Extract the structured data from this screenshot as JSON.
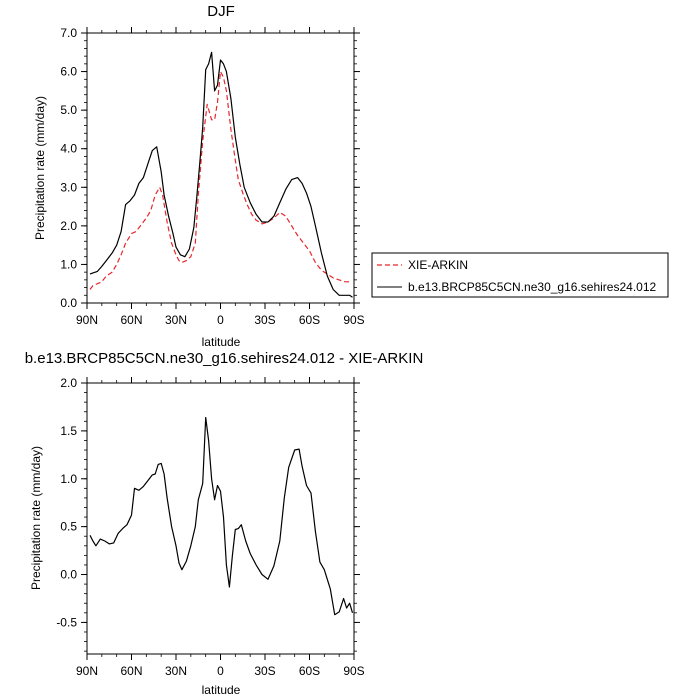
{
  "chart_data": [
    {
      "type": "line",
      "title": "DJF",
      "xlabel": "latitude",
      "ylabel": "Precipitation rate (mm/day)",
      "xlim": [
        90,
        -90
      ],
      "ylim": [
        0,
        7
      ],
      "x_ticks": [
        90,
        60,
        30,
        0,
        -30,
        -60,
        -90
      ],
      "x_tick_labels": [
        "90N",
        "60N",
        "30N",
        "0",
        "30S",
        "60S",
        "90S"
      ],
      "y_ticks": [
        0,
        1,
        2,
        3,
        4,
        5,
        6,
        7
      ],
      "y_tick_labels": [
        "0.0",
        "1.0",
        "2.0",
        "3.0",
        "4.0",
        "5.0",
        "6.0",
        "7.0"
      ],
      "grid": false,
      "legend_position": "right",
      "series": [
        {
          "name": "XIE-ARKIN",
          "color": "#e8262b",
          "dash": "dashed",
          "x": [
            88,
            86,
            83,
            80,
            77,
            73,
            70,
            67,
            64,
            60,
            57,
            54,
            50,
            47,
            44,
            41,
            39,
            36,
            33,
            30,
            28,
            26,
            23,
            20,
            17,
            15,
            12,
            9,
            6,
            4,
            2,
            0,
            -2,
            -4,
            -7,
            -10,
            -12,
            -15,
            -18,
            -21,
            -24,
            -28,
            -32,
            -36,
            -40,
            -44,
            -48,
            -52,
            -56,
            -60,
            -64,
            -68,
            -72,
            -76,
            -80,
            -84,
            -88
          ],
          "values": [
            0.35,
            0.45,
            0.5,
            0.55,
            0.7,
            0.8,
            1.0,
            1.25,
            1.55,
            1.8,
            1.85,
            2.0,
            2.2,
            2.4,
            2.8,
            3.0,
            2.8,
            2.1,
            1.55,
            1.25,
            1.1,
            1.05,
            1.1,
            1.2,
            1.55,
            2.8,
            4.2,
            5.15,
            4.75,
            4.75,
            5.2,
            6.0,
            5.85,
            5.5,
            4.5,
            3.7,
            3.2,
            2.85,
            2.55,
            2.3,
            2.15,
            2.05,
            2.1,
            2.2,
            2.35,
            2.25,
            2.0,
            1.75,
            1.55,
            1.35,
            1.05,
            0.85,
            0.75,
            0.65,
            0.6,
            0.55,
            0.55
          ]
        },
        {
          "name": "b.e13.BRCP85C5CN.ne30_g16.sehires24.012",
          "color": "#000000",
          "dash": "solid",
          "x": [
            88,
            86,
            83,
            80,
            77,
            73,
            70,
            67,
            64,
            61,
            58,
            55,
            52,
            49,
            46,
            43,
            40,
            38,
            35,
            32,
            30,
            27,
            24,
            21,
            18,
            16,
            14,
            12,
            10,
            8,
            6,
            4,
            2,
            0,
            -2,
            -4,
            -7,
            -10,
            -13,
            -16,
            -20,
            -24,
            -28,
            -32,
            -36,
            -40,
            -44,
            -48,
            -52,
            -55,
            -58,
            -61,
            -64,
            -68,
            -72,
            -76,
            -80,
            -84,
            -87,
            -89
          ],
          "values": [
            0.75,
            0.78,
            0.82,
            0.95,
            1.1,
            1.3,
            1.5,
            1.85,
            2.55,
            2.65,
            2.8,
            3.1,
            3.25,
            3.6,
            3.95,
            4.05,
            3.4,
            2.8,
            2.25,
            1.8,
            1.45,
            1.25,
            1.2,
            1.4,
            1.95,
            2.75,
            3.6,
            4.55,
            6.05,
            6.2,
            6.5,
            5.5,
            5.65,
            6.3,
            6.2,
            6.0,
            5.3,
            4.3,
            3.6,
            3.0,
            2.6,
            2.3,
            2.1,
            2.1,
            2.25,
            2.6,
            2.95,
            3.2,
            3.25,
            3.1,
            2.85,
            2.5,
            2.0,
            1.3,
            0.7,
            0.35,
            0.2,
            0.2,
            0.2,
            0.15
          ]
        }
      ]
    },
    {
      "type": "line",
      "title": "b.e13.BRCP85C5CN.ne30_g16.sehires24.012 - XIE-ARKIN",
      "xlabel": "latitude",
      "ylabel": "Precipitation rate (mm/day)",
      "xlim": [
        90,
        -90
      ],
      "ylim": [
        -0.83,
        2.0
      ],
      "x_ticks": [
        90,
        60,
        30,
        0,
        -30,
        -60,
        -90
      ],
      "x_tick_labels": [
        "90N",
        "60N",
        "30N",
        "0",
        "30S",
        "60S",
        "90S"
      ],
      "y_ticks": [
        -0.5,
        0.0,
        0.5,
        1.0,
        1.5,
        2.0
      ],
      "y_tick_labels": [
        "-0.5",
        "0.0",
        "0.5",
        "1.0",
        "1.5",
        "2.0"
      ],
      "grid": false,
      "series": [
        {
          "name": "b.e13.BRCP85C5CN.ne30_g16.sehires24.012 - XIE-ARKIN",
          "color": "#000000",
          "dash": "solid",
          "x": [
            88,
            86,
            84,
            81,
            78,
            75,
            72,
            69,
            66,
            63,
            60,
            58,
            55,
            52,
            49,
            46,
            44,
            42,
            40,
            38,
            36,
            33,
            30,
            28,
            26,
            23,
            20,
            17,
            15,
            12,
            10,
            8,
            6,
            4,
            2,
            0,
            -2,
            -4,
            -6,
            -8,
            -10,
            -12,
            -14,
            -17,
            -20,
            -24,
            -28,
            -32,
            -36,
            -40,
            -43,
            -46,
            -50,
            -53,
            -55,
            -58,
            -61,
            -64,
            -67,
            -70,
            -74,
            -77,
            -80,
            -83,
            -85,
            -87,
            -89
          ],
          "values": [
            0.41,
            0.35,
            0.3,
            0.37,
            0.35,
            0.32,
            0.33,
            0.43,
            0.48,
            0.52,
            0.62,
            0.9,
            0.88,
            0.92,
            0.98,
            1.04,
            1.05,
            1.15,
            1.16,
            1.05,
            0.8,
            0.5,
            0.3,
            0.12,
            0.05,
            0.14,
            0.3,
            0.5,
            0.78,
            0.95,
            1.64,
            1.4,
            1.0,
            0.78,
            0.93,
            0.87,
            0.6,
            0.1,
            -0.13,
            0.2,
            0.47,
            0.48,
            0.52,
            0.35,
            0.22,
            0.1,
            0.0,
            -0.05,
            0.09,
            0.35,
            0.8,
            1.12,
            1.3,
            1.31,
            1.13,
            0.93,
            0.85,
            0.45,
            0.13,
            0.05,
            -0.15,
            -0.42,
            -0.39,
            -0.25,
            -0.35,
            -0.3,
            -0.4
          ]
        }
      ]
    }
  ]
}
